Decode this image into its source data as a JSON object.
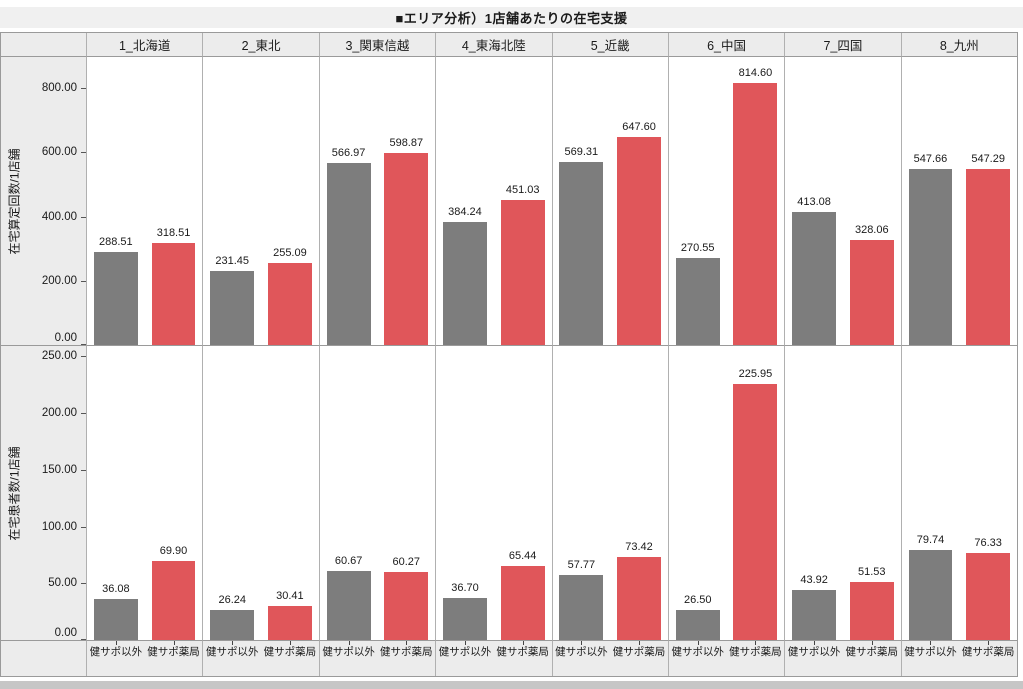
{
  "title": "■エリア分析）1店舗あたりの在宅支援",
  "regions": [
    "1_北海道",
    "2_東北",
    "3_関東信越",
    "4_東海北陸",
    "5_近畿",
    "6_中国",
    "7_四国",
    "8_九州"
  ],
  "series_labels": [
    "健サポ以外",
    "健サポ薬局"
  ],
  "colors": {
    "bar_non_kensapo": "#7d7d7d",
    "bar_kensapo": "#e0565a",
    "panel_background": "#ffffff",
    "band_background": "#ececec",
    "frame_border": "#9a9a9a"
  },
  "chart_data": [
    {
      "type": "bar",
      "title": "在宅算定回数/1店舗 (上段パネル)",
      "ylabel": "在宅算定回数/1店舗",
      "xlabel": "",
      "categories": [
        "1_北海道",
        "2_東北",
        "3_関東信越",
        "4_東海北陸",
        "5_近畿",
        "6_中国",
        "7_四国",
        "8_九州"
      ],
      "ylim": [
        0,
        900
      ],
      "yticks": [
        0,
        200,
        400,
        600,
        800
      ],
      "ytick_labels": [
        "0.00",
        "200.00",
        "400.00",
        "600.00",
        "800.00"
      ],
      "grid": false,
      "legend_position": "none",
      "series": [
        {
          "name": "健サポ以外",
          "color": "#7d7d7d",
          "values": [
            288.51,
            231.45,
            566.97,
            384.24,
            569.31,
            270.55,
            413.08,
            547.66
          ],
          "labels": [
            "288.51",
            "231.45",
            "566.97",
            "384.24",
            "569.31",
            "270.55",
            "413.08",
            "547.66"
          ]
        },
        {
          "name": "健サポ薬局",
          "color": "#e0565a",
          "values": [
            318.51,
            255.09,
            598.87,
            451.03,
            647.6,
            814.6,
            328.06,
            547.29
          ],
          "labels": [
            "318.51",
            "255.09",
            "598.87",
            "451.03",
            "647.60",
            "814.60",
            "328.06",
            "547.29"
          ]
        }
      ]
    },
    {
      "type": "bar",
      "title": "在宅患者数/1店舗 (下段パネル)",
      "ylabel": "在宅患者数/1店舗",
      "xlabel": "",
      "categories": [
        "1_北海道",
        "2_東北",
        "3_関東信越",
        "4_東海北陸",
        "5_近畿",
        "6_中国",
        "7_四国",
        "8_九州"
      ],
      "ylim": [
        0,
        260
      ],
      "yticks": [
        0,
        50,
        100,
        150,
        200,
        250
      ],
      "ytick_labels": [
        "0.00",
        "50.00",
        "100.00",
        "150.00",
        "200.00",
        "250.00"
      ],
      "grid": false,
      "legend_position": "none",
      "series": [
        {
          "name": "健サポ以外",
          "color": "#7d7d7d",
          "values": [
            36.08,
            26.24,
            60.67,
            36.7,
            57.77,
            26.5,
            43.92,
            79.74
          ],
          "labels": [
            "36.08",
            "26.24",
            "60.67",
            "36.70",
            "57.77",
            "26.50",
            "43.92",
            "79.74"
          ]
        },
        {
          "name": "健サポ薬局",
          "color": "#e0565a",
          "values": [
            69.9,
            30.41,
            60.27,
            65.44,
            73.42,
            225.95,
            51.53,
            76.33
          ],
          "labels": [
            "69.90",
            "30.41",
            "60.27",
            "65.44",
            "73.42",
            "225.95",
            "51.53",
            "76.33"
          ]
        }
      ]
    }
  ]
}
